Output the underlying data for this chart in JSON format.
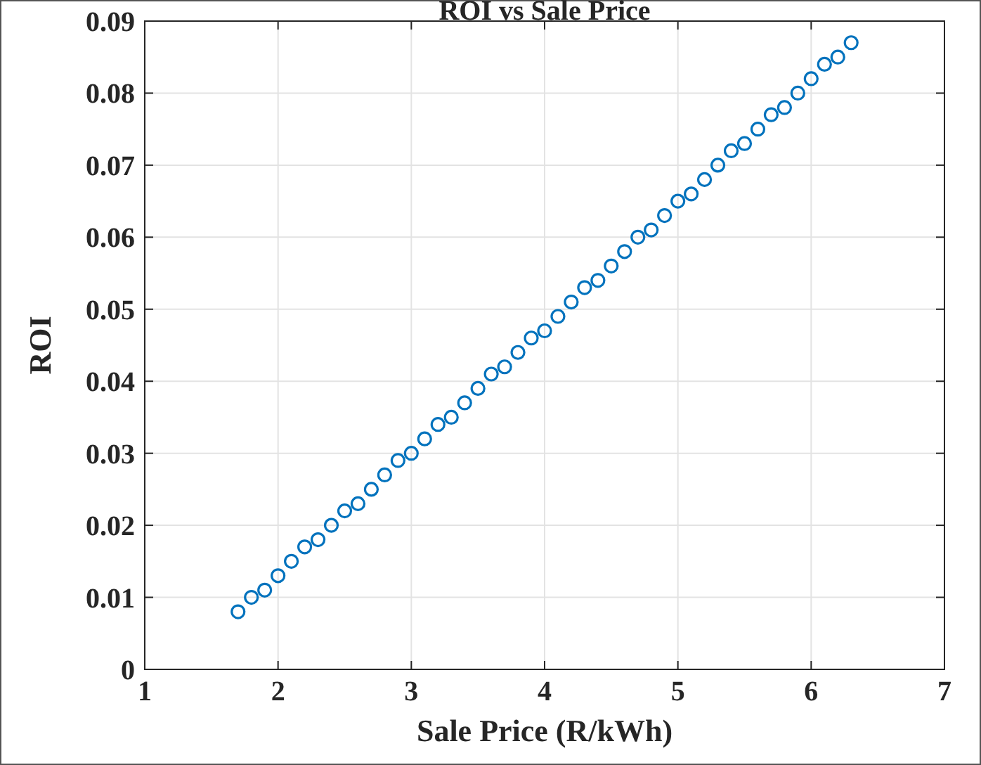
{
  "chart_data": {
    "type": "scatter",
    "title": "ROI vs Sale Price",
    "xlabel": "Sale Price (R/kWh)",
    "ylabel": "ROI",
    "x": [
      1.7,
      1.8,
      1.9,
      2.0,
      2.1,
      2.2,
      2.3,
      2.4,
      2.5,
      2.6,
      2.7,
      2.8,
      2.9,
      3.0,
      3.1,
      3.2,
      3.3,
      3.4,
      3.5,
      3.6,
      3.7,
      3.8,
      3.9,
      4.0,
      4.1,
      4.2,
      4.3,
      4.4,
      4.5,
      4.6,
      4.7,
      4.8,
      4.9,
      5.0,
      5.1,
      5.2,
      5.3,
      5.4,
      5.5,
      5.6,
      5.7,
      5.8,
      5.9,
      6.0,
      6.1,
      6.2,
      6.3
    ],
    "series": [
      {
        "color": "#0072bd",
        "values": [
          0.008,
          0.01,
          0.011,
          0.013,
          0.015,
          0.017,
          0.018,
          0.02,
          0.022,
          0.023,
          0.025,
          0.027,
          0.029,
          0.03,
          0.032,
          0.034,
          0.035,
          0.037,
          0.039,
          0.041,
          0.042,
          0.044,
          0.046,
          0.047,
          0.049,
          0.051,
          0.053,
          0.054,
          0.056,
          0.058,
          0.06,
          0.061,
          0.063,
          0.065,
          0.066,
          0.068,
          0.07,
          0.072,
          0.073,
          0.075,
          0.077,
          0.078,
          0.08,
          0.082,
          0.084,
          0.085,
          0.087
        ]
      }
    ],
    "xlim": [
      1,
      7
    ],
    "xticks": [
      1,
      2,
      3,
      4,
      5,
      6,
      7
    ],
    "ylim": [
      0,
      0.09
    ],
    "yticks": [
      0,
      0.01,
      0.02,
      0.03,
      0.04,
      0.05,
      0.06,
      0.07,
      0.08,
      0.09
    ],
    "grid": true,
    "marker": "circle"
  }
}
